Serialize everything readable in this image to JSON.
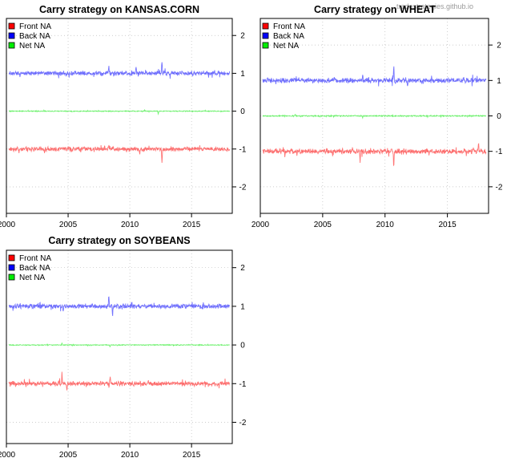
{
  "watermark": "tradestrategies.github.io",
  "chart_data": [
    {
      "type": "line",
      "title": "Carry strategy on KANSAS.CORN",
      "x_ticks": [
        2000,
        2005,
        2010,
        2015
      ],
      "x_tick_labels": [
        "2000",
        "2005",
        "2010",
        "2015"
      ],
      "xlim": [
        2000,
        2018.3
      ],
      "y_ticks": [
        -2,
        -1,
        0,
        1,
        2
      ],
      "y_tick_labels": [
        "-2",
        "-1",
        "0",
        "1",
        "2"
      ],
      "ylim": [
        -2.7,
        2.45
      ],
      "y_axis_side": "right",
      "grid": true,
      "legend": {
        "position": "top-left",
        "entries": [
          "Front NA",
          "Back NA",
          "Net NA"
        ]
      },
      "series": [
        {
          "name": "Front NA",
          "color": "#ff0000",
          "level": -1,
          "noise": 0.05,
          "spikes": [
            [
              2012.6,
              -0.4
            ],
            [
              2008.3,
              0.15
            ],
            [
              2010.8,
              -0.2
            ]
          ]
        },
        {
          "name": "Back NA",
          "color": "#0000ff",
          "level": 1,
          "noise": 0.05,
          "spikes": [
            [
              2012.6,
              0.35
            ],
            [
              2008.3,
              0.25
            ],
            [
              2010.5,
              0.2
            ]
          ]
        },
        {
          "name": "Net NA",
          "color": "#00ee00",
          "level": 0,
          "noise": 0.01,
          "spikes": [
            [
              2012.3,
              -0.08
            ],
            [
              2011.2,
              0.05
            ]
          ]
        }
      ]
    },
    {
      "type": "line",
      "title": "Carry strategy on WHEAT",
      "x_ticks": [
        2000,
        2005,
        2010,
        2015
      ],
      "x_tick_labels": [
        "2000",
        "2005",
        "2010",
        "2015"
      ],
      "xlim": [
        2000,
        2018.3
      ],
      "y_ticks": [
        -2,
        -1,
        0,
        1,
        2
      ],
      "y_tick_labels": [
        "-2",
        "-1",
        "0",
        "1",
        "2"
      ],
      "ylim": [
        -2.75,
        2.75
      ],
      "y_axis_side": "right",
      "grid": true,
      "legend": {
        "position": "top-left",
        "entries": [
          "Front NA",
          "Back NA",
          "Net NA"
        ]
      },
      "series": [
        {
          "name": "Front NA",
          "color": "#ff0000",
          "level": -1,
          "noise": 0.06,
          "spikes": [
            [
              2010.7,
              -0.5
            ],
            [
              2008.0,
              -0.3
            ],
            [
              2017.5,
              0.3
            ]
          ]
        },
        {
          "name": "Back NA",
          "color": "#0000ff",
          "level": 1,
          "noise": 0.06,
          "spikes": [
            [
              2010.7,
              0.45
            ],
            [
              2011.8,
              -0.25
            ],
            [
              2008.2,
              0.2
            ]
          ]
        },
        {
          "name": "Net NA",
          "color": "#00ee00",
          "level": 0,
          "noise": 0.015,
          "spikes": [
            [
              2002.8,
              0.06
            ],
            [
              2008.2,
              -0.07
            ]
          ]
        }
      ]
    },
    {
      "type": "line",
      "title": "Carry strategy on SOYBEANS",
      "x_ticks": [
        2000,
        2005,
        2010,
        2015
      ],
      "x_tick_labels": [
        "2000",
        "2005",
        "2010",
        "2015"
      ],
      "xlim": [
        2000,
        2018.3
      ],
      "y_ticks": [
        -2,
        -1,
        0,
        1,
        2
      ],
      "y_tick_labels": [
        "-2",
        "-1",
        "0",
        "1",
        "2"
      ],
      "ylim": [
        -2.55,
        2.45
      ],
      "y_axis_side": "right",
      "grid": true,
      "legend": {
        "position": "top-left",
        "entries": [
          "Front NA",
          "Back NA",
          "Net NA"
        ]
      },
      "series": [
        {
          "name": "Front NA",
          "color": "#ff0000",
          "level": -1,
          "noise": 0.05,
          "spikes": [
            [
              2004.5,
              0.3
            ],
            [
              2008.4,
              0.25
            ],
            [
              2004.9,
              -0.25
            ]
          ]
        },
        {
          "name": "Back NA",
          "color": "#0000ff",
          "level": 1,
          "noise": 0.05,
          "spikes": [
            [
              2008.3,
              0.25
            ],
            [
              2008.6,
              -0.25
            ],
            [
              2004.6,
              -0.15
            ]
          ]
        },
        {
          "name": "Net NA",
          "color": "#00ee00",
          "level": 0,
          "noise": 0.01,
          "spikes": [
            [
              2004.5,
              0.06
            ],
            [
              2008.4,
              -0.06
            ]
          ]
        }
      ]
    }
  ]
}
